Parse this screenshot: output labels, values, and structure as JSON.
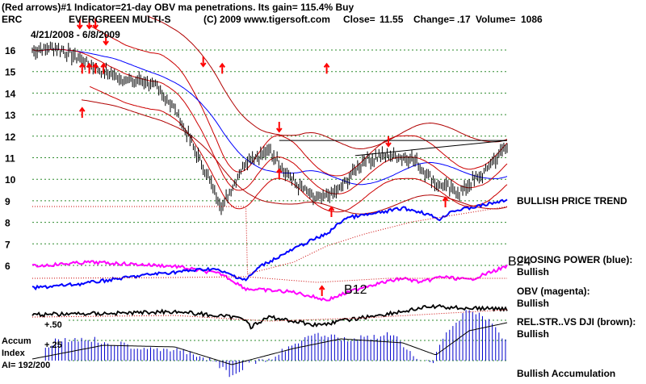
{
  "header": {
    "title_line": "(Red arrows)#1 Indicator=21-day OBV ma penetrations.  Its gain= 115.4% Buy",
    "ticker": "ERC",
    "company": "EVERGREEN MULTI-S",
    "copyright": "(C) 2009 www.tigersoft.com",
    "close_label": "Close=",
    "close_value": "11.55",
    "change_label": "Change=",
    "change_value": ".17",
    "volume_label": "Volume=",
    "volume_value": "1086",
    "date_range": "4/21/2008 - 6/8/2009"
  },
  "indicators": [
    {
      "label": "BULLISH PRICE TREND",
      "status": ""
    },
    {
      "label": "CLOSING POWER (blue):",
      "status": "Bullish"
    },
    {
      "label": "OBV (magenta):",
      "status": "Bullish"
    },
    {
      "label": "REL.STR..VS DJI (brown):",
      "status": "Bullish"
    },
    {
      "label": "Bullish Accumulation",
      "status": ""
    }
  ],
  "signals": {
    "b24": "B24",
    "b12": "B12"
  },
  "accum": {
    "label_line1": "Accum",
    "label_line2": "Index",
    "ai_label": "AI= 192/200",
    "level_50": "+.50",
    "level_25": "+.25"
  },
  "colors": {
    "price_bar": "#000000",
    "upper_band": "#cc0000",
    "blue_ma": "#0000ff",
    "closing_power": "#0000ff",
    "obv": "#ff00ff",
    "rel_str": "#000000",
    "accum_bars": "#0000cc",
    "arrows": "#ff0000",
    "grid": "#2e8b2e"
  },
  "chart_data": {
    "type": "line",
    "ylim": [
      6,
      16.5
    ],
    "yticks": [
      "16",
      "15",
      "14",
      "13",
      "12",
      "11",
      "10",
      "9",
      "8",
      "7",
      "6"
    ],
    "price_series": {
      "name": "ERC",
      "x": [
        0,
        5,
        10,
        15,
        20,
        25,
        30,
        35,
        40,
        45,
        50,
        55,
        60,
        65,
        70,
        75,
        80,
        85,
        90,
        95,
        100
      ],
      "values": [
        16.0,
        16.1,
        15.6,
        15.0,
        14.6,
        14.5,
        13.3,
        11.0,
        8.7,
        10.9,
        11.3,
        9.9,
        9.0,
        9.6,
        10.9,
        11.1,
        11.0,
        9.8,
        9.4,
        10.3,
        11.55
      ]
    }
  }
}
